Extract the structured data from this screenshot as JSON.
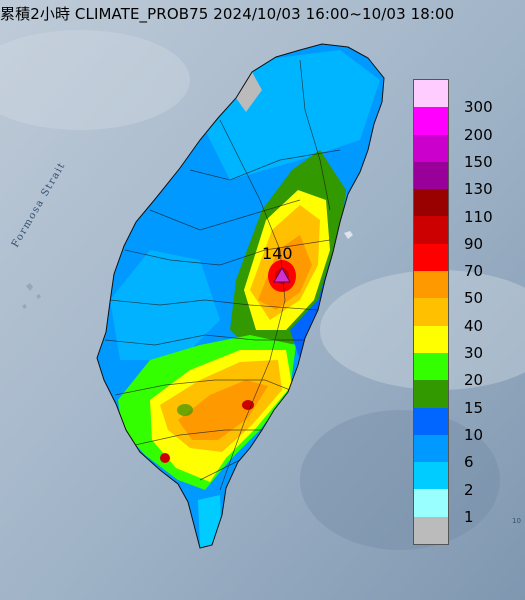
{
  "title": "累積2小時 CLIMATE_PROB75 2024/10/03 16:00~10/03 18:00",
  "water_label": "Formosa Strait",
  "peak_label": "140",
  "edge_mark": "10",
  "legend": {
    "colors": [
      "#ffccff",
      "#ff00ff",
      "#cc00cc",
      "#990099",
      "#990000",
      "#cc0000",
      "#ff0000",
      "#ff9900",
      "#ffc000",
      "#ffff00",
      "#33ff00",
      "#339900",
      "#0066ff",
      "#0099ff",
      "#00ccff",
      "#99ffff",
      "#bbbbbb"
    ],
    "labels": [
      "300",
      "200",
      "150",
      "130",
      "110",
      "90",
      "70",
      "50",
      "40",
      "30",
      "20",
      "15",
      "10",
      "6",
      "2",
      "1"
    ]
  }
}
